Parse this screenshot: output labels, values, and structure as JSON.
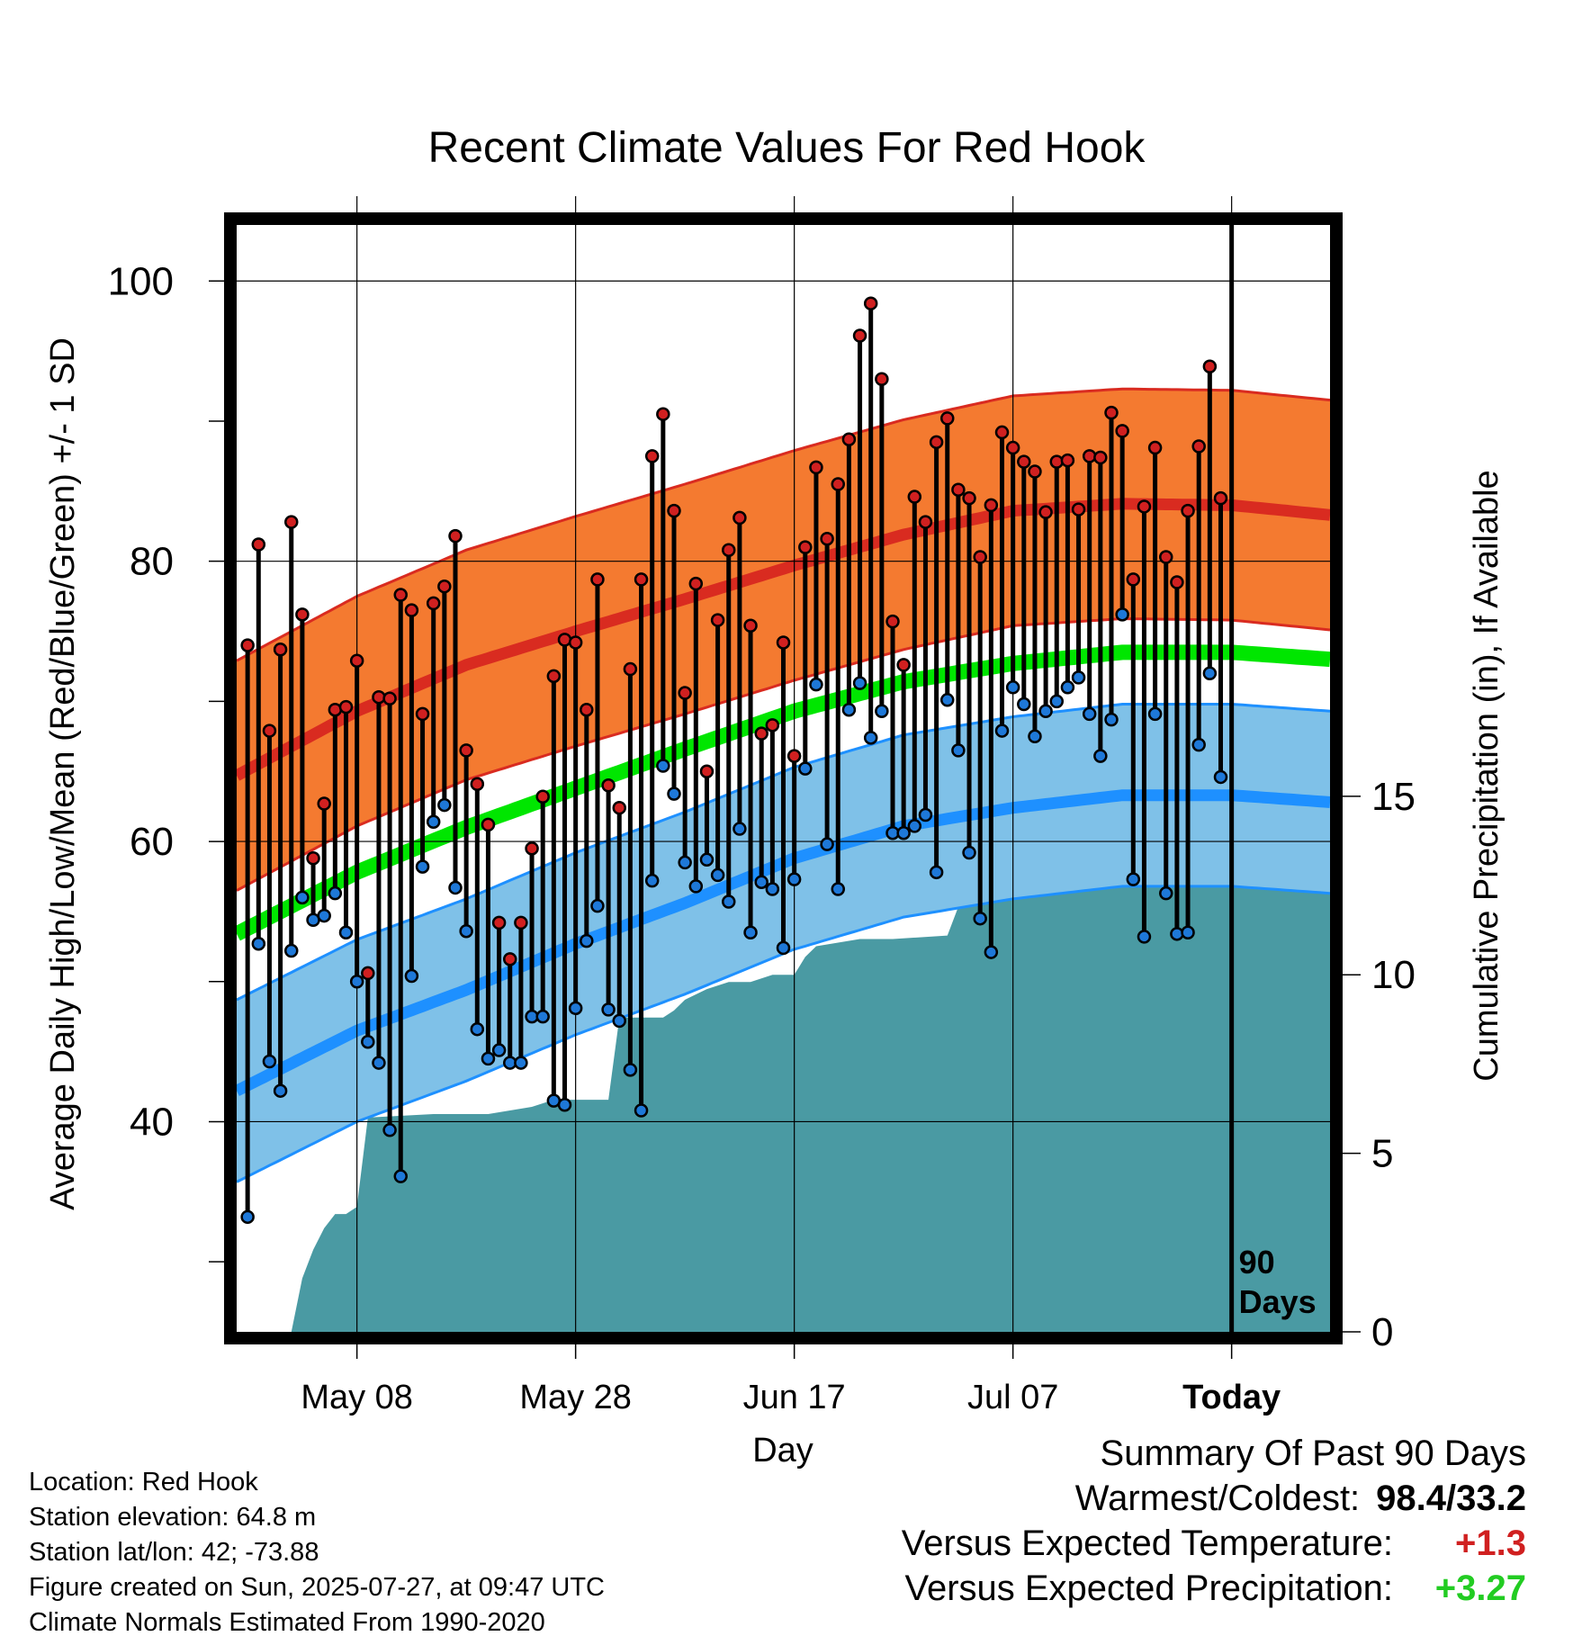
{
  "colors": {
    "high_band": "#F47A30",
    "high_edge": "#D92B20",
    "mean_line": "#00E600",
    "low_band": "#7FC1E8",
    "low_line": "#1E90FF",
    "precip_fill": "#4A9AA3",
    "high_point": "#D02020",
    "low_point": "#1E78D8",
    "positive_temp": "#D02020",
    "positive_precip": "#22CC22"
  },
  "chart_data": {
    "type": "line",
    "title": "Recent Climate Values For Red Hook",
    "xlabel": "Day",
    "ylabel": "Average Daily High/Low/Mean (Red/Blue/Green) +/- 1 SD",
    "y2label": "Cumulative Precipitation (in), If Available",
    "x_ticks": [
      "May 08",
      "May 28",
      "Jun 17",
      "Jul 07",
      "Today"
    ],
    "y_ticks": [
      "100",
      "80",
      "60",
      "40"
    ],
    "y2_ticks": [
      "15",
      "10",
      "5",
      "0"
    ],
    "today_annotation": [
      "90",
      "Days"
    ],
    "ylim": [
      25,
      104
    ],
    "y2lim": [
      0,
      31
    ],
    "grid": true,
    "day_labels": {
      "May 08": 10,
      "May 28": 30,
      "Jun 17": 50,
      "Jul 07": 70,
      "Today": 90
    },
    "normals": {
      "days": [
        -1,
        10,
        20,
        30,
        40,
        50,
        60,
        70,
        80,
        90,
        99
      ],
      "high_mean": [
        64.7,
        69.3,
        72.6,
        75.0,
        77.3,
        79.7,
        81.9,
        83.6,
        84.1,
        84.0,
        83.3
      ],
      "high_sd": 8.2,
      "mean": [
        53.4,
        57.8,
        61.0,
        63.8,
        66.6,
        69.3,
        71.4,
        72.7,
        73.5,
        73.5,
        73.0
      ],
      "mean_sd": 0.7,
      "low_mean": [
        42.2,
        46.5,
        49.4,
        52.7,
        55.6,
        58.8,
        61.1,
        62.4,
        63.3,
        63.3,
        62.8
      ],
      "low_sd": 6.5
    },
    "series": [
      {
        "name": "High",
        "values": [
          74.0,
          81.2,
          67.9,
          73.7,
          82.8,
          76.2,
          58.8,
          62.7,
          69.4,
          69.6,
          72.9,
          50.6,
          70.3,
          70.2,
          77.6,
          76.5,
          69.1,
          77.0,
          78.2,
          81.8,
          66.5,
          64.1,
          61.2,
          54.2,
          51.6,
          54.2,
          59.5,
          63.2,
          71.8,
          74.4,
          74.2,
          69.4,
          78.7,
          64.0,
          62.4,
          72.3,
          78.7,
          87.5,
          90.5,
          83.6,
          70.6,
          78.4,
          65.0,
          75.8,
          80.8,
          83.1,
          75.4,
          67.7,
          68.3,
          74.2,
          66.1,
          81.0,
          86.7,
          81.6,
          85.5,
          88.7,
          96.1,
          98.4,
          93.0,
          75.7,
          72.6,
          84.6,
          82.8,
          88.5,
          90.2,
          85.1,
          84.5,
          80.3,
          84.0,
          89.2,
          88.1,
          87.1,
          86.4,
          83.5,
          87.1,
          87.2,
          83.7,
          87.5,
          87.4,
          90.6,
          89.3,
          78.7,
          83.9,
          88.1,
          80.3,
          78.5,
          83.6,
          88.2,
          93.9,
          84.5
        ]
      },
      {
        "name": "Low",
        "values": [
          33.2,
          52.7,
          44.3,
          42.2,
          52.2,
          56.0,
          54.4,
          54.7,
          56.3,
          53.5,
          50.0,
          45.7,
          44.2,
          39.4,
          36.1,
          50.4,
          58.2,
          61.4,
          62.6,
          56.7,
          53.6,
          46.6,
          44.5,
          45.1,
          44.2,
          44.2,
          47.5,
          47.5,
          41.5,
          41.2,
          48.1,
          52.9,
          55.4,
          48.0,
          47.2,
          43.7,
          40.8,
          57.2,
          65.4,
          63.4,
          58.5,
          56.8,
          58.7,
          57.6,
          55.7,
          60.9,
          53.5,
          57.1,
          56.6,
          52.4,
          57.3,
          65.2,
          71.2,
          59.8,
          56.6,
          69.4,
          71.3,
          67.4,
          69.3,
          60.6,
          60.6,
          61.1,
          61.9,
          57.8,
          70.1,
          66.5,
          59.2,
          54.5,
          52.1,
          67.9,
          71.0,
          69.8,
          67.5,
          69.3,
          70.0,
          71.0,
          71.7,
          69.1,
          66.1,
          68.7,
          76.2,
          57.3,
          53.2,
          69.1,
          56.3,
          53.4,
          53.5,
          66.9,
          72.0,
          64.6
        ]
      },
      {
        "name": "Cumulative Precipitation",
        "steps": [
          [
            4,
            0.0
          ],
          [
            5,
            1.5
          ],
          [
            6,
            2.3
          ],
          [
            7,
            2.9
          ],
          [
            8,
            3.3
          ],
          [
            9,
            3.3
          ],
          [
            10,
            3.5
          ],
          [
            11,
            6.0
          ],
          [
            17,
            6.1
          ],
          [
            22,
            6.1
          ],
          [
            26,
            6.3
          ],
          [
            28,
            6.5
          ],
          [
            33,
            6.5
          ],
          [
            34,
            8.8
          ],
          [
            38,
            8.8
          ],
          [
            39,
            9.0
          ],
          [
            40,
            9.3
          ],
          [
            42,
            9.6
          ],
          [
            44,
            9.8
          ],
          [
            46,
            9.8
          ],
          [
            48,
            10.0
          ],
          [
            50,
            10.0
          ],
          [
            51,
            10.5
          ],
          [
            52,
            10.8
          ],
          [
            54,
            10.9
          ],
          [
            56,
            11.0
          ],
          [
            59,
            11.0
          ],
          [
            64,
            11.1
          ],
          [
            65,
            11.9
          ],
          [
            66,
            12.0
          ],
          [
            67,
            12.2
          ],
          [
            70,
            12.2
          ],
          [
            71,
            12.6
          ],
          [
            72,
            13.5
          ],
          [
            73,
            13.7
          ],
          [
            74,
            13.8
          ],
          [
            77,
            13.8
          ],
          [
            78,
            14.6
          ],
          [
            79,
            14.6
          ],
          [
            88,
            14.7
          ],
          [
            99,
            14.7
          ]
        ]
      }
    ]
  },
  "info": {
    "location": "Location: Red Hook",
    "elevation": "Station elevation: 64.8 m",
    "latlon": "Station lat/lon: 42; -73.88",
    "created": "Figure created on Sun, 2025-07-27, at 09:47 UTC",
    "normals": "Climate Normals Estimated From 1990-2020"
  },
  "summary": {
    "title": "Summary Of Past 90 Days",
    "warm_cold_label": "Warmest/Coldest:",
    "warm_cold_value": "98.4/33.2",
    "temp_label": "Versus Expected Temperature:",
    "temp_value": "+1.3",
    "precip_label": "Versus Expected Precipitation:",
    "precip_value": "+3.27"
  }
}
